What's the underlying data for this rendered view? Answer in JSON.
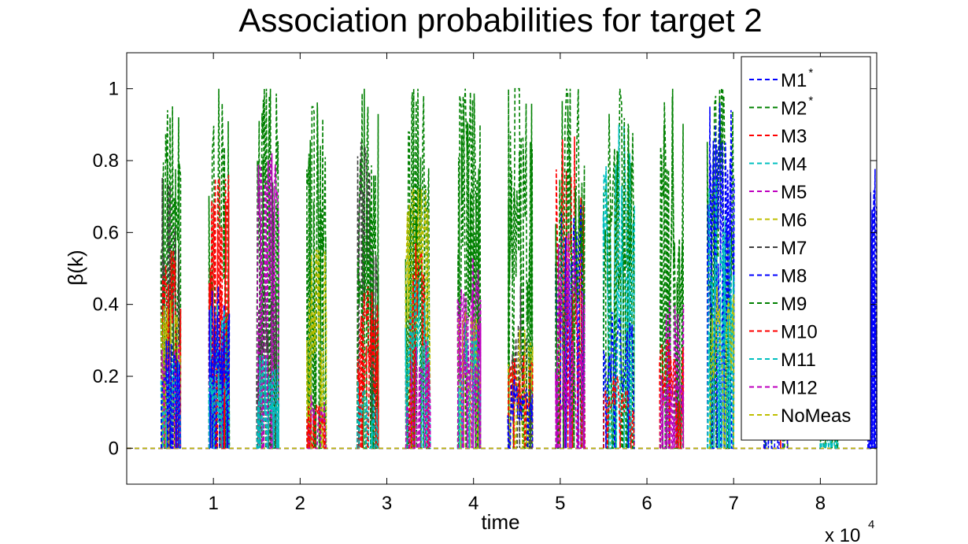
{
  "chart_data": {
    "type": "line",
    "title": "Association probabilities for target 2",
    "xlabel": "time",
    "ylabel": "β(k)",
    "x_multiplier_label": "x 10",
    "x_multiplier_exponent": "4",
    "xlim": [
      0,
      8.65
    ],
    "ylim": [
      -0.1,
      1.1
    ],
    "xticks": [
      1,
      2,
      3,
      4,
      5,
      6,
      7,
      8
    ],
    "xtick_labels": [
      "1",
      "2",
      "3",
      "4",
      "5",
      "6",
      "7",
      "8"
    ],
    "yticks": [
      0,
      0.2,
      0.4,
      0.6,
      0.8,
      1
    ],
    "ytick_labels": [
      "0",
      "0.2",
      "0.4",
      "0.6",
      "0.8",
      "1"
    ],
    "grid": false,
    "legend_position": "top-right",
    "line_style": "dashed",
    "series": [
      {
        "name": "M1",
        "star": "*",
        "color": "#0000ff"
      },
      {
        "name": "M2",
        "star": "*",
        "color": "#008000"
      },
      {
        "name": "M3",
        "color": "#ff0000"
      },
      {
        "name": "M4",
        "color": "#00bfbf"
      },
      {
        "name": "M5",
        "color": "#bf00bf"
      },
      {
        "name": "M6",
        "color": "#bfbf00"
      },
      {
        "name": "M7",
        "color": "#404040"
      },
      {
        "name": "M8",
        "color": "#0000ff"
      },
      {
        "name": "M9",
        "color": "#008000"
      },
      {
        "name": "M10",
        "color": "#ff0000"
      },
      {
        "name": "M11",
        "color": "#00bfbf"
      },
      {
        "name": "M12",
        "color": "#bf00bf"
      },
      {
        "name": "NoMeas",
        "color": "#bfbf00"
      }
    ],
    "bursts": [
      {
        "x": [
          0.4,
          0.62
        ],
        "peaks": {
          "M2": 1.0,
          "M9": 0.8,
          "M7": 0.78,
          "M3": 0.55,
          "M6": 0.45,
          "M12": 0.3,
          "M4": 0.25,
          "M1": 0.3
        }
      },
      {
        "x": [
          0.95,
          1.18
        ],
        "peaks": {
          "M2": 1.0,
          "M3": 0.78,
          "M10": 0.75,
          "M1": 0.45,
          "M4": 0.4,
          "M8": 0.4,
          "M11": 0.2
        }
      },
      {
        "x": [
          1.5,
          1.75
        ],
        "peaks": {
          "M2": 1.0,
          "M9": 0.98,
          "M5": 0.83,
          "M12": 0.8,
          "M7": 0.45,
          "M4": 0.26,
          "M11": 0.14
        }
      },
      {
        "x": [
          2.08,
          2.3
        ],
        "peaks": {
          "M2": 1.0,
          "M9": 0.95,
          "M6": 0.55,
          "M5": 0.15,
          "M3": 0.12
        }
      },
      {
        "x": [
          2.66,
          2.9
        ],
        "peaks": {
          "M2": 1.0,
          "M7": 0.9,
          "M9": 0.7,
          "M10": 0.45,
          "M3": 0.37,
          "M4": 0.2
        }
      },
      {
        "x": [
          3.22,
          3.5
        ],
        "peaks": {
          "M2": 1.0,
          "M9": 0.99,
          "M6": 0.72,
          "M3": 0.57,
          "M4": 0.47,
          "M12": 0.3
        }
      },
      {
        "x": [
          3.82,
          4.08
        ],
        "peaks": {
          "M2": 1.0,
          "M9": 0.99,
          "M12": 0.53,
          "M6": 0.38,
          "M11": 0.35,
          "M5": 0.45
        }
      },
      {
        "x": [
          4.4,
          4.68
        ],
        "peaks": {
          "M2": 1.0,
          "M9": 0.9,
          "M7": 0.45,
          "M6": 0.33,
          "M3": 0.26,
          "M8": 0.2
        }
      },
      {
        "x": [
          4.95,
          5.28
        ],
        "peaks": {
          "M2": 1.0,
          "M3": 0.87,
          "M8": 0.7,
          "M9": 0.95,
          "M5": 0.6,
          "M12": 0.3
        }
      },
      {
        "x": [
          5.5,
          5.85
        ],
        "peaks": {
          "M2": 1.0,
          "M11": 0.97,
          "M4": 0.9,
          "M9": 0.95,
          "M1": 0.4,
          "M10": 0.2
        }
      },
      {
        "x": [
          6.15,
          6.42
        ],
        "peaks": {
          "M2": 1.0,
          "M9": 0.99,
          "M5": 0.45,
          "M3": 0.3,
          "M12": 0.2
        }
      },
      {
        "x": [
          6.7,
          7.0
        ],
        "peaks": {
          "M2": 1.0,
          "M9": 0.98,
          "M1": 0.96,
          "M8": 0.9,
          "M4": 0.75,
          "M11": 0.6,
          "M6": 0.45
        }
      },
      {
        "x": [
          7.35,
          7.62
        ],
        "peaks": {
          "M2": 0.9,
          "M3": 0.3,
          "M1": 0.2
        }
      },
      {
        "x": [
          8.0,
          8.2
        ],
        "peaks": {
          "M9": 0.12,
          "M4": 0.04
        }
      },
      {
        "x": [
          8.55,
          8.65
        ],
        "peaks": {
          "M1": 0.8,
          "M8": 0.6
        }
      }
    ]
  }
}
